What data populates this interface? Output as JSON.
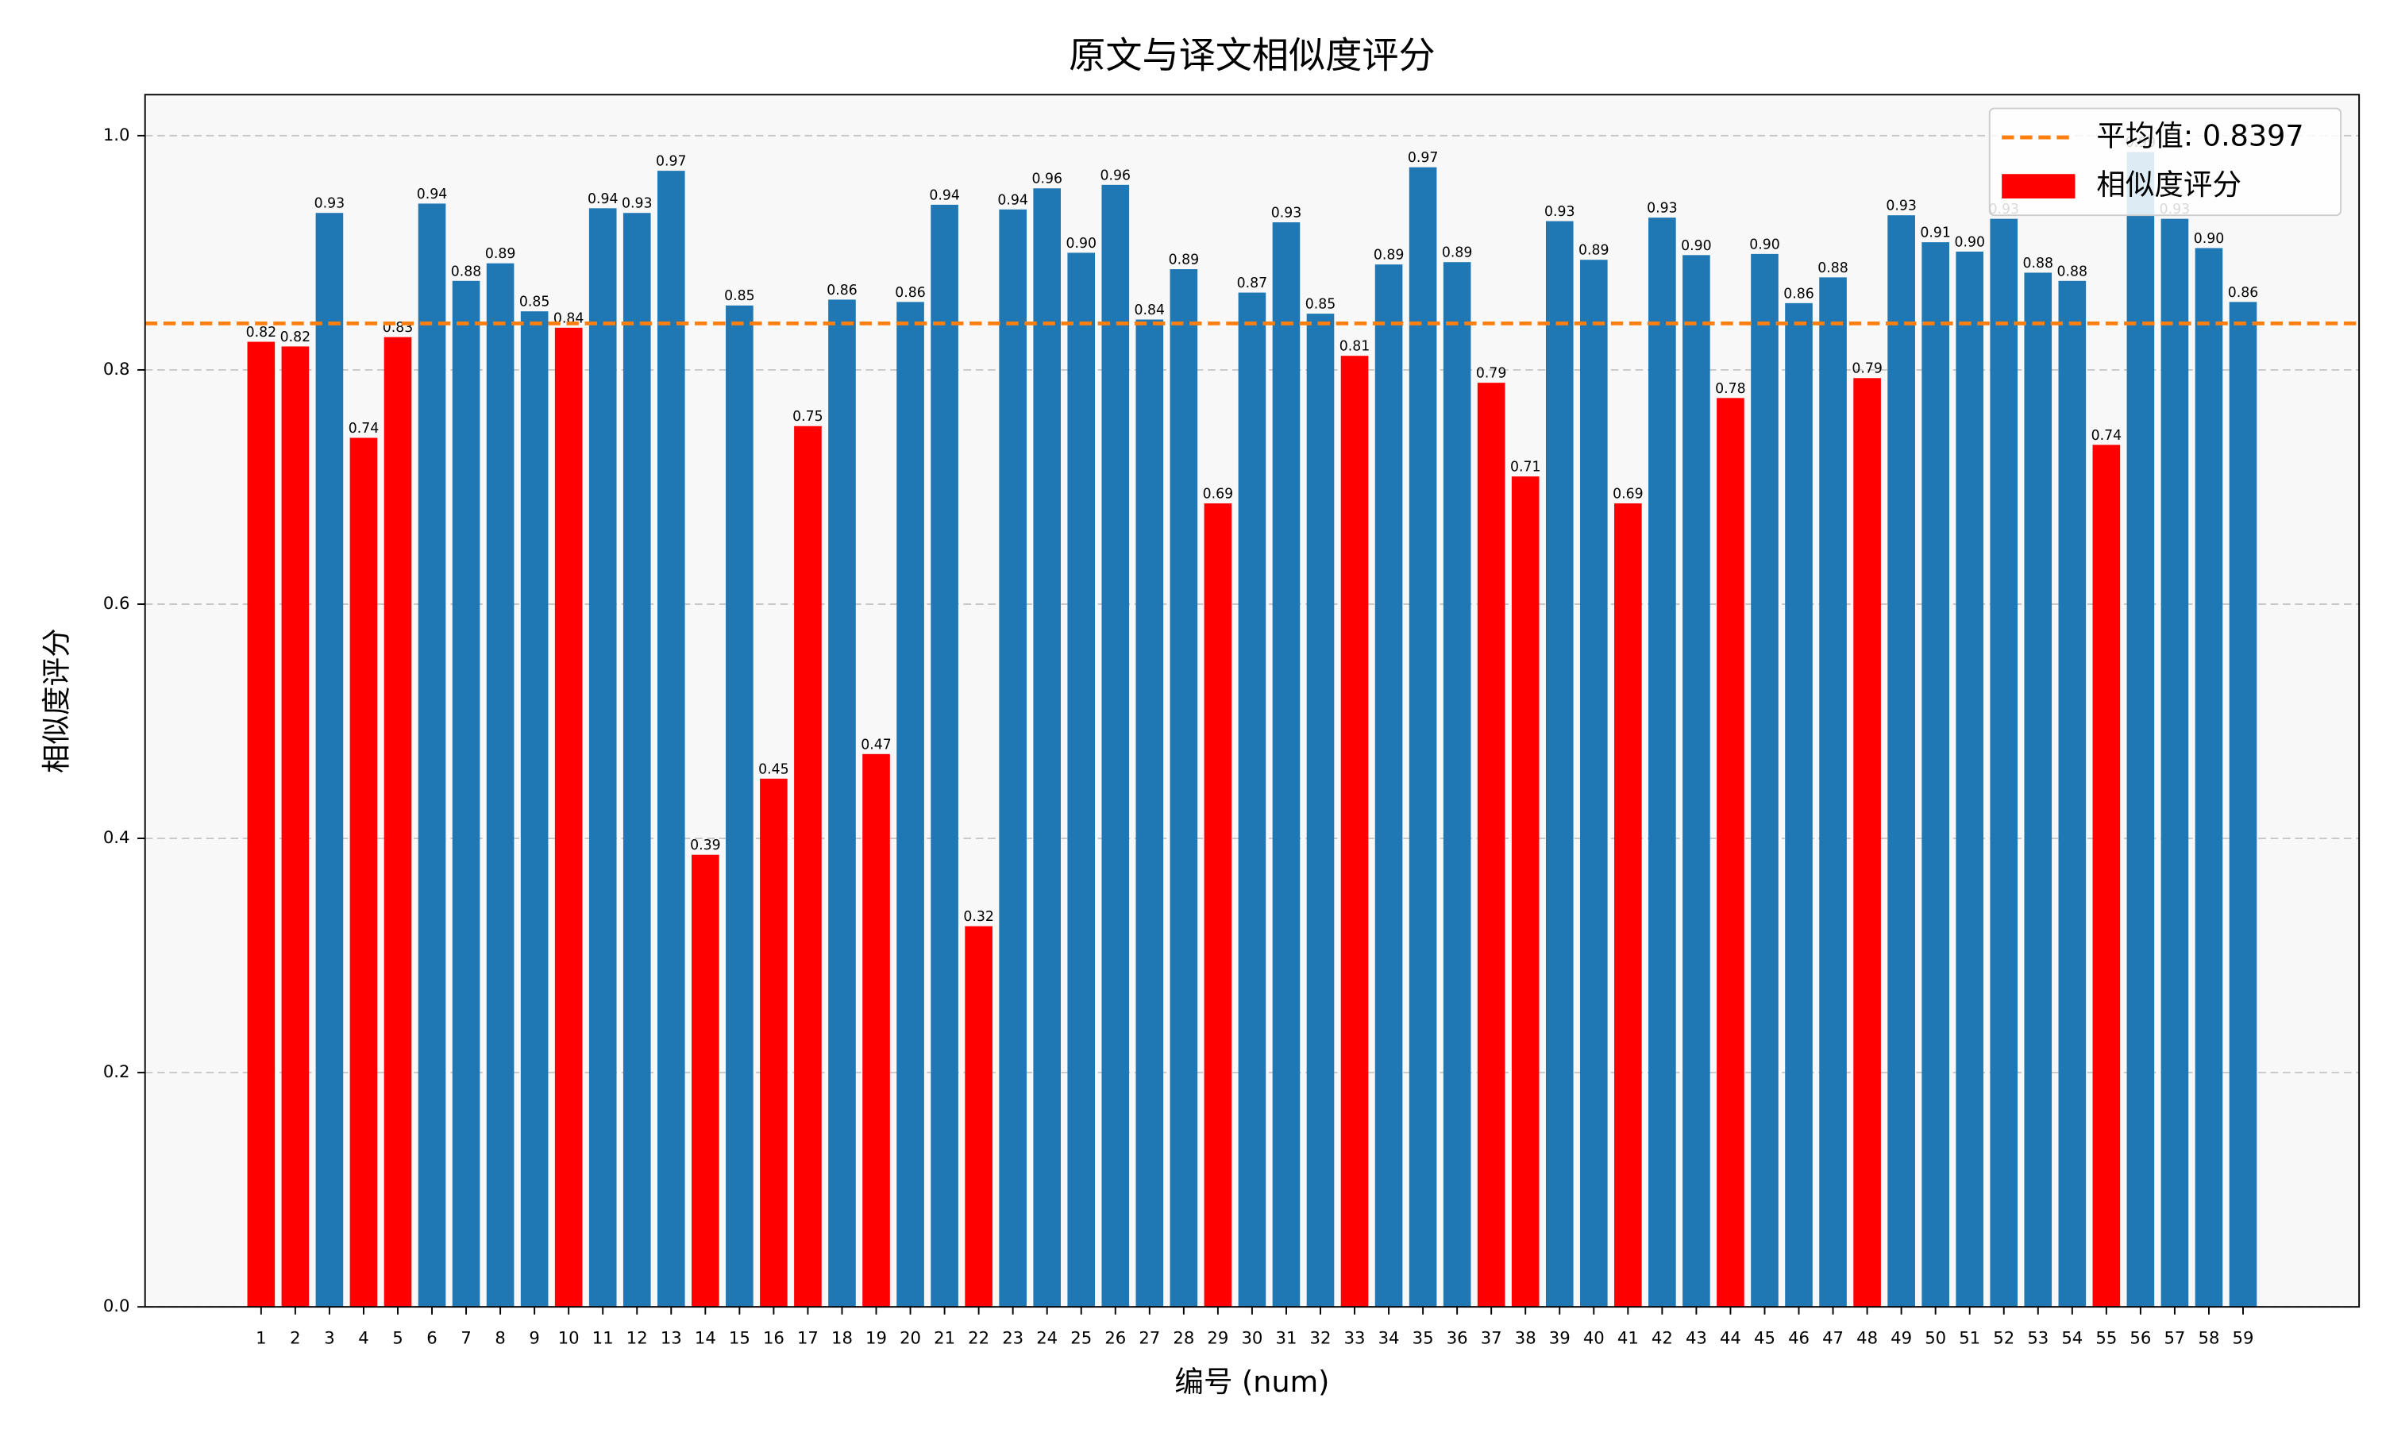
{
  "chart_data": {
    "type": "bar",
    "title": "原文与译文相似度评分",
    "xlabel": "编号 (num)",
    "ylabel": "相似度评分",
    "categories": [
      "1",
      "2",
      "3",
      "4",
      "5",
      "6",
      "7",
      "8",
      "9",
      "10",
      "11",
      "12",
      "13",
      "14",
      "15",
      "16",
      "17",
      "18",
      "19",
      "20",
      "21",
      "22",
      "23",
      "24",
      "25",
      "26",
      "27",
      "28",
      "29",
      "30",
      "31",
      "32",
      "33",
      "34",
      "35",
      "36",
      "37",
      "38",
      "39",
      "40",
      "41",
      "42",
      "43",
      "44",
      "45",
      "46",
      "47",
      "48",
      "49",
      "50",
      "51",
      "52",
      "53",
      "54",
      "55",
      "56",
      "57",
      "58",
      "59"
    ],
    "series": [
      {
        "name": "相似度评分",
        "color": "#ff0000",
        "values": [
          0.824,
          0.82,
          0.934,
          0.742,
          0.828,
          0.942,
          0.876,
          0.891,
          0.85,
          0.836,
          0.938,
          0.934,
          0.97,
          0.386,
          0.855,
          0.451,
          0.752,
          0.86,
          0.472,
          0.858,
          0.941,
          0.325,
          0.937,
          0.955,
          0.9,
          0.958,
          0.843,
          0.886,
          0.686,
          0.866,
          0.926,
          0.848,
          0.812,
          0.89,
          0.973,
          0.892,
          0.789,
          0.709,
          0.927,
          0.894,
          0.686,
          0.93,
          0.898,
          0.776,
          0.899,
          0.857,
          0.879,
          0.793,
          0.932,
          0.909,
          0.901,
          0.929,
          0.883,
          0.876,
          0.736,
          0.986,
          0.929,
          0.904,
          0.858
        ],
        "value_labels": [
          "0.82",
          "0.82",
          "0.93",
          "0.74",
          "0.83",
          "0.94",
          "0.88",
          "0.89",
          "0.85",
          "0.84",
          "0.94",
          "0.93",
          "0.97",
          "0.39",
          "0.85",
          "0.45",
          "0.75",
          "0.86",
          "0.47",
          "0.86",
          "0.94",
          "0.32",
          "0.94",
          "0.96",
          "0.90",
          "0.96",
          "0.84",
          "0.89",
          "0.69",
          "0.87",
          "0.93",
          "0.85",
          "0.81",
          "0.89",
          "0.97",
          "0.89",
          "0.79",
          "0.71",
          "0.93",
          "0.89",
          "0.69",
          "0.93",
          "0.90",
          "0.78",
          "0.90",
          "0.86",
          "0.88",
          "0.79",
          "0.93",
          "0.91",
          "0.90",
          "0.93",
          "0.88",
          "0.88",
          "0.74",
          "0.99",
          "0.93",
          "0.90",
          "0.86"
        ],
        "colors": [
          "#ff0000",
          "#ff0000",
          "#1f77b4",
          "#ff0000",
          "#ff0000",
          "#1f77b4",
          "#1f77b4",
          "#1f77b4",
          "#1f77b4",
          "#ff0000",
          "#1f77b4",
          "#1f77b4",
          "#1f77b4",
          "#ff0000",
          "#1f77b4",
          "#ff0000",
          "#ff0000",
          "#1f77b4",
          "#ff0000",
          "#1f77b4",
          "#1f77b4",
          "#ff0000",
          "#1f77b4",
          "#1f77b4",
          "#1f77b4",
          "#1f77b4",
          "#1f77b4",
          "#1f77b4",
          "#ff0000",
          "#1f77b4",
          "#1f77b4",
          "#1f77b4",
          "#ff0000",
          "#1f77b4",
          "#1f77b4",
          "#1f77b4",
          "#ff0000",
          "#ff0000",
          "#1f77b4",
          "#1f77b4",
          "#ff0000",
          "#1f77b4",
          "#1f77b4",
          "#ff0000",
          "#1f77b4",
          "#1f77b4",
          "#1f77b4",
          "#ff0000",
          "#1f77b4",
          "#1f77b4",
          "#1f77b4",
          "#1f77b4",
          "#1f77b4",
          "#1f77b4",
          "#ff0000",
          "#1f77b4",
          "#1f77b4",
          "#1f77b4",
          "#1f77b4"
        ]
      }
    ],
    "mean_line": {
      "value": 0.8397,
      "label": "平均值: 0.8397",
      "color": "#ff7f0e"
    },
    "ylim": [
      0,
      1.035
    ],
    "yticks": [
      {
        "value": 0,
        "label": "0.0"
      },
      0.2,
      0.4,
      0.6,
      0.8,
      {
        "value": 1,
        "label": "1.0"
      }
    ],
    "grid": true,
    "legend": "upper right"
  }
}
